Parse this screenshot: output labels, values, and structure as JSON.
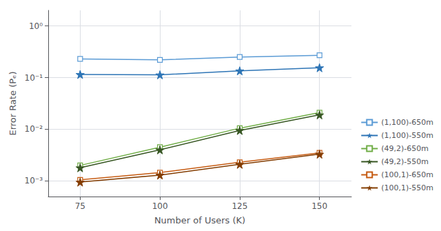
{
  "chart_data": {
    "type": "line",
    "x": [
      75,
      100,
      125,
      150
    ],
    "series": [
      {
        "name": "(1,100)-650m",
        "color": "#5B9BD5",
        "marker": "open_square",
        "values": [
          0.23,
          0.22,
          0.25,
          0.27
        ]
      },
      {
        "name": "(1,100)-550m",
        "color": "#2E75B6",
        "marker": "star",
        "values": [
          0.115,
          0.113,
          0.135,
          0.155
        ]
      },
      {
        "name": "(49,2)-650m",
        "color": "#70AD47",
        "marker": "open_square",
        "values": [
          0.002,
          0.0045,
          0.0105,
          0.021
        ]
      },
      {
        "name": "(49,2)-550m",
        "color": "#375623",
        "marker": "star",
        "values": [
          0.0018,
          0.004,
          0.0095,
          0.019
        ]
      },
      {
        "name": "(100,1)-650m",
        "color": "#C55A11",
        "marker": "open_square",
        "values": [
          0.00105,
          0.00145,
          0.0023,
          0.0035
        ]
      },
      {
        "name": "(100,1)-550m",
        "color": "#833C00",
        "marker": "star",
        "values": [
          0.00095,
          0.0013,
          0.0021,
          0.0033
        ]
      }
    ],
    "xlabel": "Number of Users (K)",
    "ylabel": "Error Rate (Pₑ)",
    "xlim": [
      65,
      160
    ],
    "xticks": [
      75,
      100,
      125,
      150
    ],
    "ylim": [
      0.0005,
      2.0
    ],
    "yticks": [
      {
        "value": 0.001,
        "label": "10⁻³"
      },
      {
        "value": 0.01,
        "label": "10⁻²"
      },
      {
        "value": 0.1,
        "label": "10⁻¹"
      },
      {
        "value": 1,
        "label": "10⁰"
      }
    ],
    "log": "y",
    "grid": true,
    "legend": "lower right"
  }
}
